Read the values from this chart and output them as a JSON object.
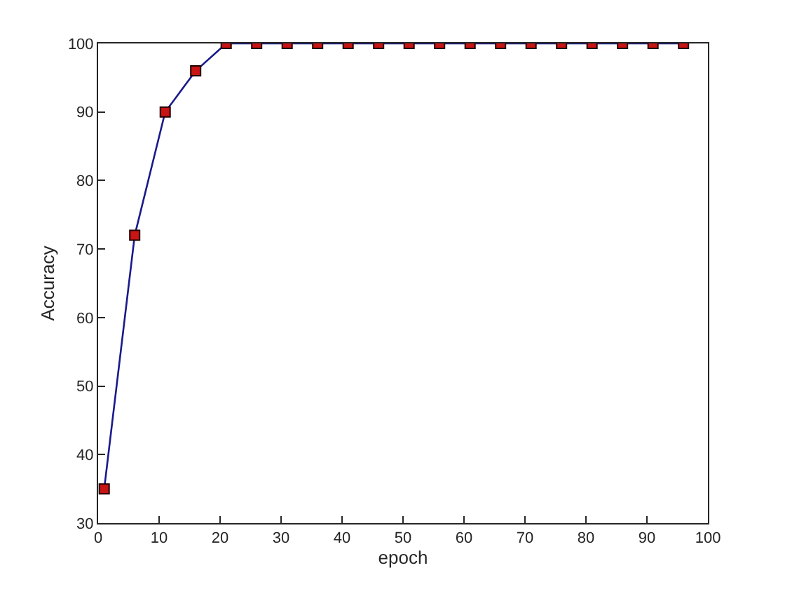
{
  "chart_data": {
    "type": "line",
    "xlabel": "epoch",
    "ylabel": "Accuracy",
    "x": [
      1,
      6,
      11,
      16,
      21,
      26,
      31,
      36,
      41,
      46,
      51,
      56,
      61,
      66,
      71,
      76,
      81,
      86,
      91,
      96
    ],
    "series": [
      {
        "color": "#1a1a8c",
        "values": [
          35,
          72,
          90,
          96,
          100,
          100,
          100,
          100,
          100,
          100,
          100,
          100,
          100,
          100,
          100,
          100,
          100,
          100,
          100,
          100
        ]
      }
    ],
    "xlim": [
      0,
      100
    ],
    "xticks": [
      0,
      10,
      20,
      30,
      40,
      50,
      60,
      70,
      80,
      90,
      100
    ],
    "ylim": [
      30,
      100
    ],
    "yticks": [
      30,
      40,
      50,
      60,
      70,
      80,
      90,
      100
    ],
    "marker": "square",
    "line_style": "solid"
  }
}
